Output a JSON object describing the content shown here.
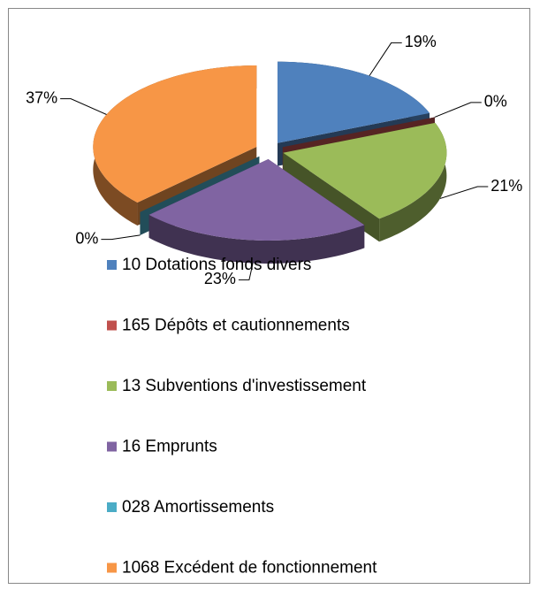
{
  "chart_data": {
    "type": "pie",
    "categories": [
      "10 Dotations fonds divers",
      "165 Dépôts et cautionnements",
      "13 Subventions d'investissement",
      "16 Emprunts",
      "028 Amortissements",
      "1068 Excédent de fonctionnement"
    ],
    "values": [
      19,
      0,
      21,
      23,
      0,
      37
    ],
    "value_labels": [
      "19%",
      "0%",
      "21%",
      "23%",
      "0%",
      "37%"
    ],
    "colors": [
      "#4f81bd",
      "#c0504d",
      "#9bbb59",
      "#8064a2",
      "#4bacc6",
      "#f79646"
    ],
    "legend": "bottom"
  }
}
